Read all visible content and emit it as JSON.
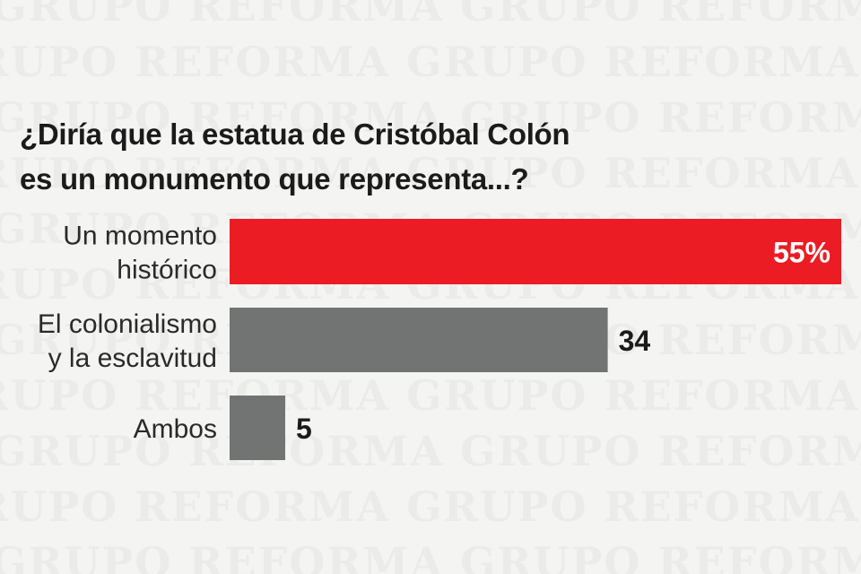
{
  "watermark_text": "GRUPO REFORMA",
  "colors": {
    "highlight": "#ec1c24",
    "bar": "#727474",
    "text": "#1b1b1b",
    "background": "#f4f4f2"
  },
  "chart_data": {
    "type": "bar",
    "orientation": "horizontal",
    "title": "¿Diría que la estatua de Cristóbal Colón es un monumento que representa...?",
    "title_lines": [
      "¿Diría que la estatua de Cristóbal Colón",
      "es un monumento que representa...?"
    ],
    "categories": [
      [
        "Un momento",
        "histórico"
      ],
      [
        "El colonialismo",
        "y la esclavitud"
      ],
      [
        "Ambos"
      ]
    ],
    "values": [
      55,
      34,
      5
    ],
    "value_labels": [
      "55%",
      "34",
      "5"
    ],
    "xlim": [
      0,
      55
    ],
    "grid": false,
    "legend": "none"
  }
}
